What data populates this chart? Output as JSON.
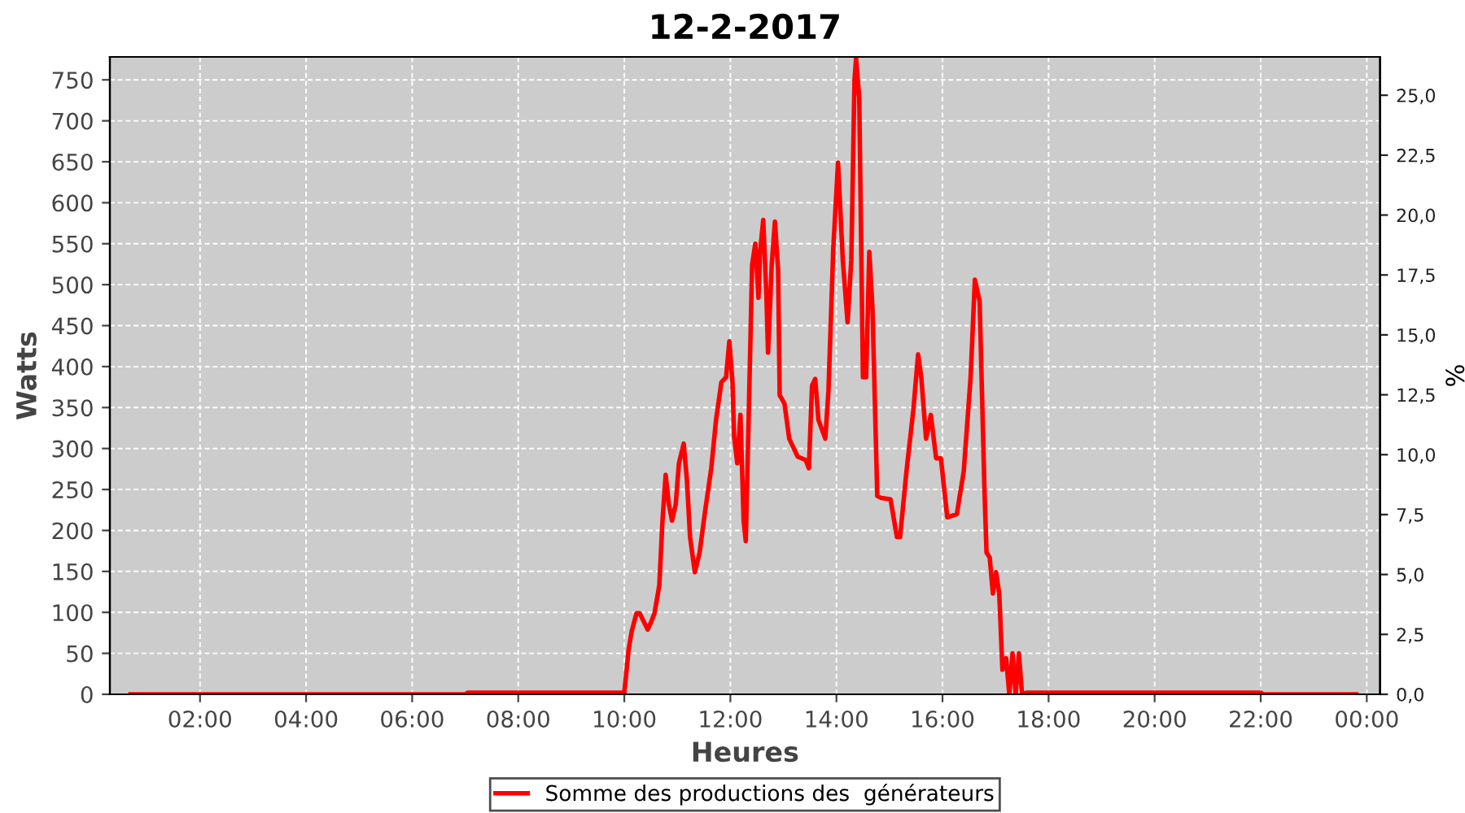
{
  "chart_data": {
    "type": "line",
    "title": "12-2-2017",
    "xlabel": "Heures",
    "ylabel": "Watts",
    "y2label": "%",
    "xlim": [
      0.3,
      24.25
    ],
    "xticks": [
      {
        "value": 2,
        "label": "02:00"
      },
      {
        "value": 4,
        "label": "04:00"
      },
      {
        "value": 6,
        "label": "06:00"
      },
      {
        "value": 8,
        "label": "08:00"
      },
      {
        "value": 10,
        "label": "10:00"
      },
      {
        "value": 12,
        "label": "12:00"
      },
      {
        "value": 14,
        "label": "14:00"
      },
      {
        "value": 16,
        "label": "16:00"
      },
      {
        "value": 18,
        "label": "18:00"
      },
      {
        "value": 20,
        "label": "20:00"
      },
      {
        "value": 22,
        "label": "22:00"
      },
      {
        "value": 24,
        "label": "00:00"
      }
    ],
    "ylim": [
      0,
      778
    ],
    "yticks": [
      0,
      50,
      100,
      150,
      200,
      250,
      300,
      350,
      400,
      450,
      500,
      550,
      600,
      650,
      700,
      750
    ],
    "y2lim": [
      0,
      26.6
    ],
    "y2ticks": [
      {
        "value": 0,
        "label": "0,0"
      },
      {
        "value": 2.5,
        "label": "2,5"
      },
      {
        "value": 5,
        "label": "5,0"
      },
      {
        "value": 7.5,
        "label": "7,5"
      },
      {
        "value": 10,
        "label": "10,0"
      },
      {
        "value": 12.5,
        "label": "12,5"
      },
      {
        "value": 15,
        "label": "15,0"
      },
      {
        "value": 17.5,
        "label": "17,5"
      },
      {
        "value": 20,
        "label": "20,0"
      },
      {
        "value": 22.5,
        "label": "22,5"
      },
      {
        "value": 25,
        "label": "25,0"
      }
    ],
    "grid": true,
    "legend": "bottom",
    "marker": "none",
    "line_style": "solid",
    "series": [
      {
        "name": "Somme des productions des  générateurs",
        "color": "#ff0000",
        "x": [
          0.69,
          7.0,
          7.05,
          10.0,
          10.05,
          10.08,
          10.14,
          10.23,
          10.29,
          10.44,
          10.51,
          10.57,
          10.66,
          10.72,
          10.78,
          10.84,
          10.9,
          10.97,
          11.03,
          11.12,
          11.18,
          11.24,
          11.33,
          11.42,
          11.52,
          11.64,
          11.73,
          11.83,
          11.92,
          11.98,
          12.04,
          12.07,
          12.13,
          12.19,
          12.25,
          12.29,
          12.35,
          12.41,
          12.47,
          12.53,
          12.56,
          12.62,
          12.68,
          12.71,
          12.78,
          12.84,
          12.9,
          12.93,
          13.02,
          13.11,
          13.27,
          13.42,
          13.48,
          13.54,
          13.6,
          13.66,
          13.79,
          13.85,
          13.94,
          14.03,
          14.12,
          14.21,
          14.28,
          14.34,
          14.37,
          14.43,
          14.5,
          14.56,
          14.62,
          14.68,
          14.77,
          14.83,
          15.02,
          15.14,
          15.2,
          15.32,
          15.45,
          15.54,
          15.6,
          15.69,
          15.78,
          15.88,
          15.97,
          16.09,
          16.27,
          16.4,
          16.53,
          16.61,
          16.7,
          16.79,
          16.83,
          16.89,
          16.95,
          17.01,
          17.07,
          17.13,
          17.2,
          17.26,
          17.32,
          17.38,
          17.44,
          17.5,
          17.6,
          22.0,
          22.05,
          23.8
        ],
        "values": [
          0,
          0,
          2,
          2,
          34,
          54,
          77,
          99,
          99,
          79,
          89,
          99,
          133,
          212,
          268,
          232,
          212,
          232,
          282,
          306,
          262,
          192,
          149,
          173,
          222,
          276,
          335,
          381,
          387,
          431,
          381,
          315,
          282,
          341,
          212,
          187,
          351,
          524,
          550,
          484,
          540,
          579,
          486,
          417,
          524,
          577,
          518,
          365,
          355,
          312,
          290,
          286,
          276,
          377,
          385,
          335,
          312,
          371,
          544,
          649,
          530,
          454,
          530,
          748,
          776,
          728,
          387,
          387,
          540,
          470,
          242,
          240,
          238,
          192,
          192,
          272,
          347,
          415,
          387,
          312,
          341,
          288,
          288,
          216,
          220,
          272,
          387,
          506,
          480,
          252,
          173,
          167,
          123,
          149,
          123,
          30,
          44,
          0,
          50,
          0,
          50,
          0,
          2,
          2,
          0,
          0
        ]
      }
    ]
  }
}
